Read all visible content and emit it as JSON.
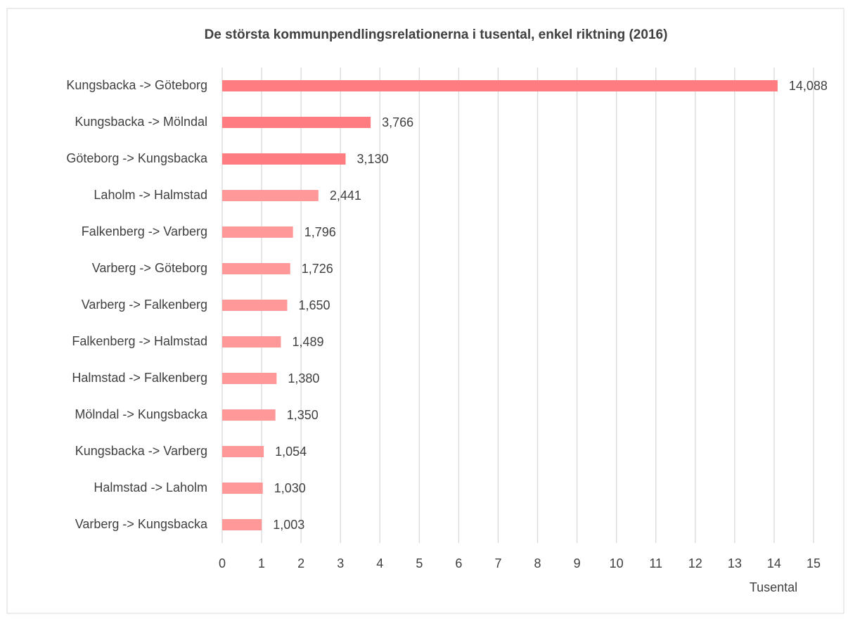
{
  "chart_data": {
    "type": "bar",
    "orientation": "horizontal",
    "title": "De största kommunpendlingsrelationerna i tusental, enkel riktning (2016)",
    "x_label": "Tusental",
    "categories": [
      "Kungsbacka -> Göteborg",
      "Kungsbacka -> Mölndal",
      "Göteborg -> Kungsbacka",
      "Laholm -> Halmstad",
      "Falkenberg -> Varberg",
      "Varberg -> Göteborg",
      "Varberg -> Falkenberg",
      "Falkenberg -> Halmstad",
      "Halmstad -> Falkenberg",
      "Mölndal -> Kungsbacka",
      "Kungsbacka -> Varberg",
      "Halmstad -> Laholm",
      "Varberg -> Kungsbacka"
    ],
    "values": [
      14.088,
      3.766,
      3.13,
      2.441,
      1.796,
      1.726,
      1.65,
      1.489,
      1.38,
      1.35,
      1.054,
      1.03,
      1.003
    ],
    "value_labels": [
      "14,088",
      "3,766",
      "3,130",
      "2,441",
      "1,796",
      "1,726",
      "1,650",
      "1,489",
      "1,380",
      "1,350",
      "1,054",
      "1,030",
      "1,003"
    ],
    "colors": [
      "#ff7c80",
      "#ff7c80",
      "#ff7c80",
      "#ff9999",
      "#ff9999",
      "#ff9999",
      "#ff9999",
      "#ff9999",
      "#ff9999",
      "#ff9999",
      "#ff9999",
      "#ff9999",
      "#ff9999"
    ],
    "xlim": [
      0,
      15
    ],
    "xticks": [
      0,
      1,
      2,
      3,
      4,
      5,
      6,
      7,
      8,
      9,
      10,
      11,
      12,
      13,
      14,
      15
    ],
    "grid": true
  }
}
